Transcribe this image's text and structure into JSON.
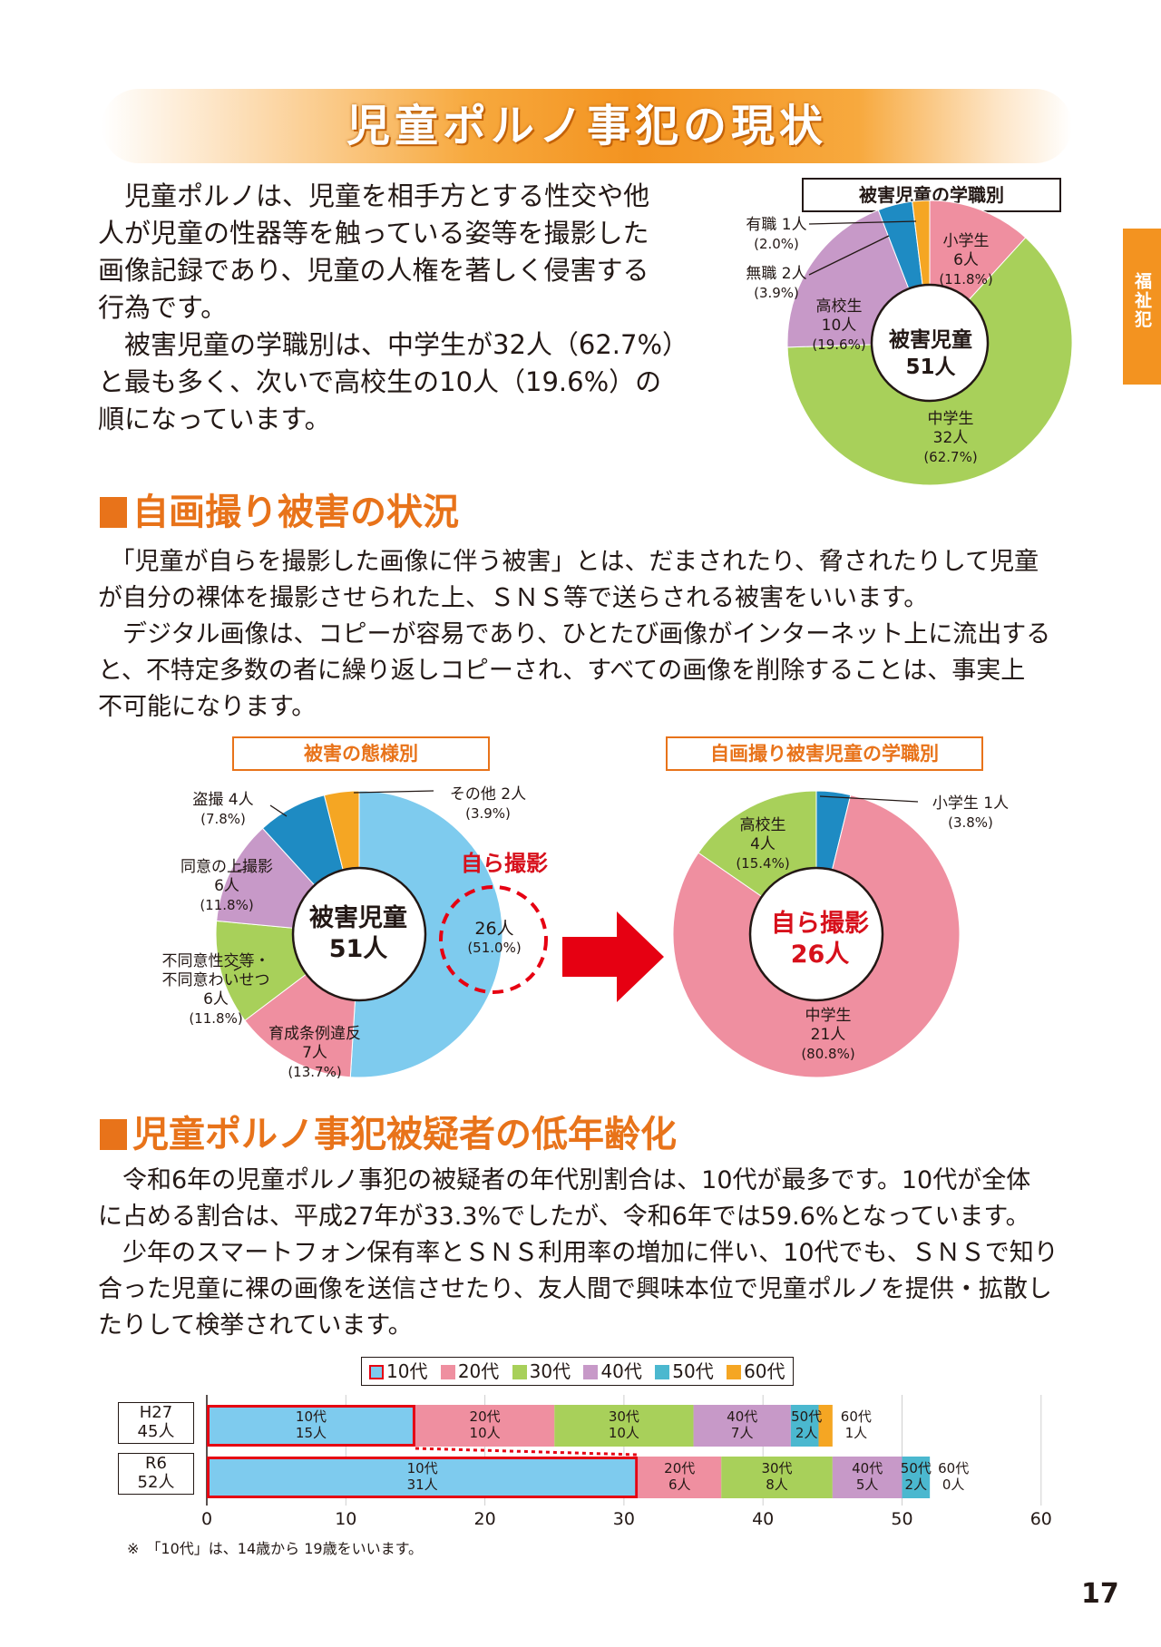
{
  "header": {
    "title": "児童ポルノ事犯の現状",
    "side_tab": "福祉犯"
  },
  "intro": {
    "lines": [
      "　児童ポルノは、児童を相手方とする性交や他",
      "人が児童の性器等を触っている姿等を撮影した",
      "画像記録であり、児童の人権を著しく侵害する",
      "行為です。",
      "　被害児童の学職別は、中学生が32人（62.7%）",
      "と最も多く、次いで高校生の10人（19.6%）の",
      "順になっています。"
    ]
  },
  "chart1_caption": "被害児童の学職別",
  "chart1_center": {
    "line1": "被害児童",
    "line2": "51人"
  },
  "chart1_labels": {
    "yushoku": [
      "有職 1人",
      "(2.0%)"
    ],
    "mushoku": [
      "無職 2人",
      "(3.9%)"
    ],
    "shogakusei": [
      "小学生",
      "6人",
      "(11.8%)"
    ],
    "koukousei": [
      "高校生",
      "10人",
      "(19.6%)"
    ],
    "chugakusei": [
      "中学生",
      "32人",
      "(62.7%)"
    ]
  },
  "section2": {
    "heading": "自画撮り被害の状況",
    "lines": [
      "　「児童が自らを撮影した画像に伴う被害」とは、だまされたり、脅されたりして児童",
      "が自分の裸体を撮影させられた上、ＳＮＳ等で送らされる被害をいいます。",
      "　デジタル画像は、コピーが容易であり、ひとたび画像がインターネット上に流出する",
      "と、不特定多数の者に繰り返しコピーされ、すべての画像を削除することは、事実上",
      "不可能になります。"
    ]
  },
  "chart2_caption": "被害の態様別",
  "chart2_center": {
    "line1": "被害児童",
    "line2": "51人"
  },
  "chart2_labels": {
    "tousatsu": [
      "盗撮 4人",
      "(7.8%)"
    ],
    "sonota": [
      "その他 2人",
      "(3.9%)"
    ],
    "doui": [
      "同意の上撮影",
      "6人",
      "(11.8%)"
    ],
    "fudoui": [
      "不同意性交等・",
      "不同意わいせつ",
      "6人",
      "(11.8%)"
    ],
    "ikusei": [
      "育成条例違反",
      "7人",
      "(13.7%)"
    ],
    "jiga": [
      "26人",
      "(51.0%)"
    ],
    "jiga_title": "自ら撮影"
  },
  "chart3_caption": "自画撮り被害児童の学職別",
  "chart3_center": {
    "line1": "自ら撮影",
    "line2": "26人"
  },
  "chart3_labels": {
    "shogakusei": [
      "小学生 1人",
      "(3.8%)"
    ],
    "koukousei": [
      "高校生",
      "4人",
      "(15.4%)"
    ],
    "chugakusei": [
      "中学生",
      "21人",
      "(80.8%)"
    ]
  },
  "section3": {
    "heading": "児童ポルノ事犯被疑者の低年齢化",
    "lines": [
      "　令和6年の児童ポルノ事犯の被疑者の年代別割合は、10代が最多です。10代が全体",
      "に占める割合は、平成27年が33.3%でしたが、令和6年では59.6%となっています。",
      "　少年のスマートフォン保有率とＳＮＳ利用率の増加に伴い、10代でも、ＳＮＳで知り",
      "合った児童に裸の画像を送信させたり、友人間で興味本位で児童ポルノを提供・拡散し",
      "たりして検挙されています。"
    ]
  },
  "bar_legend": [
    "10代",
    "20代",
    "30代",
    "40代",
    "50代",
    "60代"
  ],
  "bar_footnote": "※　「10代」は、14歳から 19歳をいいます。",
  "page_number": "17",
  "colors": {
    "teen": "#7ecbee",
    "twenties": "#ef8fa0",
    "thirties": "#a8d05a",
    "forties": "#c799c8",
    "fifties": "#4bb8cf",
    "sixties": "#f5a623",
    "accent": "#e8731a",
    "red": "#d7101b",
    "dark_blue": "#1e8bc3",
    "orange": "#f5a623"
  },
  "chart_data": [
    {
      "type": "pie",
      "title": "被害児童の学職別",
      "slices": [
        {
          "name": "小学生",
          "value": 6,
          "pct": 11.8,
          "color": "#ef8fa0"
        },
        {
          "name": "中学生",
          "value": 32,
          "pct": 62.7,
          "color": "#a8d05a"
        },
        {
          "name": "高校生",
          "value": 10,
          "pct": 19.6,
          "color": "#c799c8"
        },
        {
          "name": "無職",
          "value": 2,
          "pct": 3.9,
          "color": "#1e8bc3"
        },
        {
          "name": "有職",
          "value": 1,
          "pct": 2.0,
          "color": "#f5a623"
        }
      ],
      "total": 51
    },
    {
      "type": "pie",
      "title": "被害の態様別",
      "slices": [
        {
          "name": "自ら撮影",
          "value": 26,
          "pct": 51.0,
          "color": "#7ecbee"
        },
        {
          "name": "育成条例違反",
          "value": 7,
          "pct": 13.7,
          "color": "#ef8fa0"
        },
        {
          "name": "不同意性交等・不同意わいせつ",
          "value": 6,
          "pct": 11.8,
          "color": "#a8d05a"
        },
        {
          "name": "同意の上撮影",
          "value": 6,
          "pct": 11.8,
          "color": "#c799c8"
        },
        {
          "name": "盗撮",
          "value": 4,
          "pct": 7.8,
          "color": "#1e8bc3"
        },
        {
          "name": "その他",
          "value": 2,
          "pct": 3.9,
          "color": "#f5a623"
        }
      ],
      "total": 51
    },
    {
      "type": "pie",
      "title": "自画撮り被害児童の学職別",
      "slices": [
        {
          "name": "小学生",
          "value": 1,
          "pct": 3.8,
          "color": "#1e8bc3"
        },
        {
          "name": "中学生",
          "value": 21,
          "pct": 80.8,
          "color": "#ef8fa0"
        },
        {
          "name": "高校生",
          "value": 4,
          "pct": 15.4,
          "color": "#a8d05a"
        }
      ],
      "total": 26
    },
    {
      "type": "bar",
      "orientation": "horizontal",
      "stacked": true,
      "categories": [
        "H27 45人",
        "R6 52人"
      ],
      "row_labels": [
        [
          "H27",
          "45人"
        ],
        [
          "R6",
          "52人"
        ]
      ],
      "series": [
        {
          "name": "10代",
          "values": [
            15,
            31
          ],
          "labels": [
            [
              "10代",
              "15人"
            ],
            [
              "10代",
              "31人"
            ]
          ]
        },
        {
          "name": "20代",
          "values": [
            10,
            6
          ],
          "labels": [
            [
              "20代",
              "10人"
            ],
            [
              "20代",
              "6人"
            ]
          ]
        },
        {
          "name": "30代",
          "values": [
            10,
            8
          ],
          "labels": [
            [
              "30代",
              "10人"
            ],
            [
              "30代",
              "8人"
            ]
          ]
        },
        {
          "name": "40代",
          "values": [
            7,
            5
          ],
          "labels": [
            [
              "40代",
              "7人"
            ],
            [
              "40代",
              "5人"
            ]
          ]
        },
        {
          "name": "50代",
          "values": [
            2,
            2
          ],
          "labels": [
            [
              "50代",
              "2人"
            ],
            [
              "50代",
              "2人"
            ]
          ]
        },
        {
          "name": "60代",
          "values": [
            1,
            0
          ],
          "labels": [
            [
              "60代",
              "1人"
            ],
            [
              "60代",
              "0人"
            ]
          ]
        }
      ],
      "xlim": [
        0,
        60
      ],
      "xticks": [
        0,
        10,
        20,
        30,
        40,
        50,
        60
      ],
      "grid": true
    }
  ]
}
